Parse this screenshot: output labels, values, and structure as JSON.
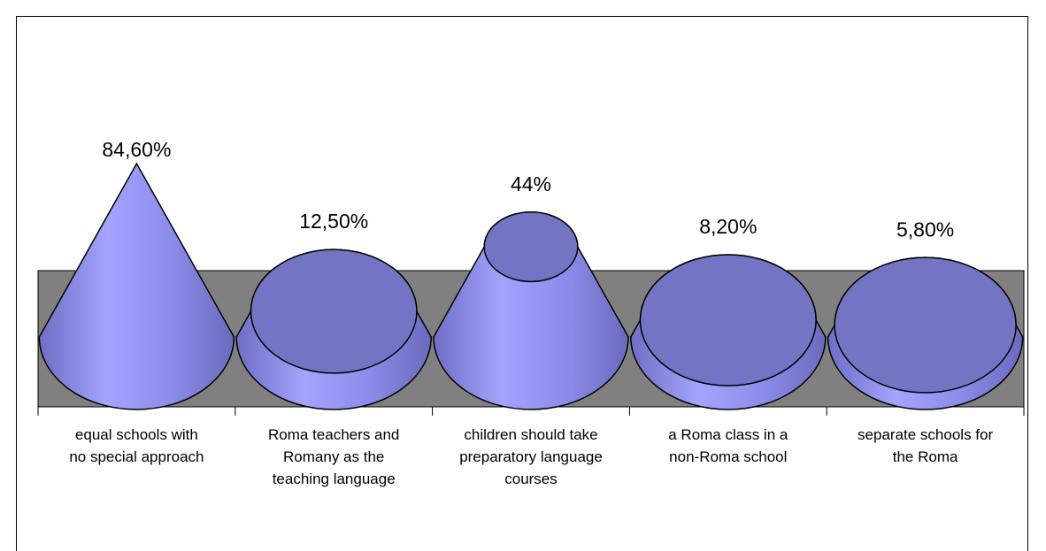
{
  "chart_data": {
    "type": "cone",
    "categories": [
      [
        "equal schools with",
        "no special approach"
      ],
      [
        "Roma teachers and",
        "Romany as the",
        "teaching language"
      ],
      [
        "children should take",
        "preparatory language",
        "courses"
      ],
      [
        "a Roma class in a",
        "non-Roma school"
      ],
      [
        "separate schools for",
        "the Roma"
      ]
    ],
    "values": [
      84.6,
      12.5,
      44,
      8.2,
      5.8
    ],
    "value_labels": [
      "84,60%",
      "12,50%",
      "44%",
      "8,20%",
      "5,80%"
    ],
    "color": "#8f8ff0",
    "wall_color": "#808080"
  }
}
